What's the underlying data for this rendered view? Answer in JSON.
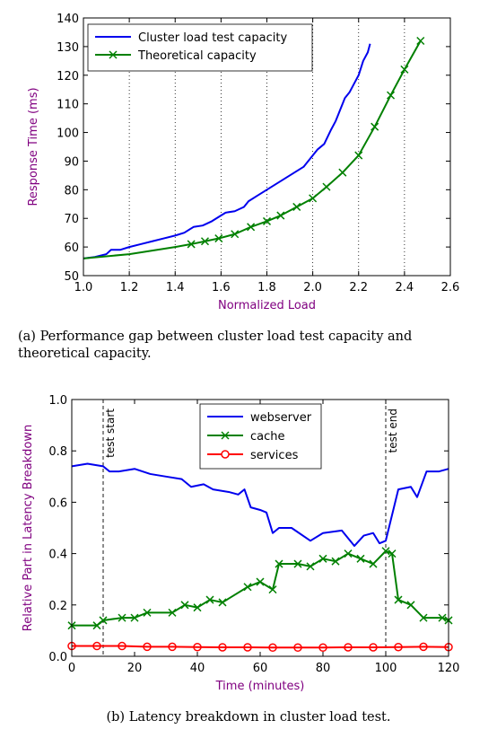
{
  "chart_data": [
    {
      "type": "line",
      "xlabel": "Normalized Load",
      "ylabel": "Response Time (ms)",
      "xlim": [
        1.0,
        2.6
      ],
      "ylim": [
        50,
        140
      ],
      "xticks": [
        "1.0",
        "1.2",
        "1.4",
        "1.6",
        "1.8",
        "2.0",
        "2.2",
        "2.4",
        "2.6"
      ],
      "yticks": [
        "50",
        "60",
        "70",
        "80",
        "90",
        "100",
        "110",
        "120",
        "130",
        "140"
      ],
      "grid": "vertical dotted",
      "legend": "top-left",
      "series": [
        {
          "name": "Cluster load test capacity",
          "color": "#0000ee",
          "marker": "none",
          "points": [
            [
              1.0,
              56
            ],
            [
              1.05,
              56.5
            ],
            [
              1.1,
              57.5
            ],
            [
              1.12,
              59
            ],
            [
              1.16,
              59
            ],
            [
              1.2,
              60
            ],
            [
              1.25,
              61
            ],
            [
              1.3,
              62
            ],
            [
              1.35,
              63
            ],
            [
              1.4,
              64
            ],
            [
              1.44,
              65
            ],
            [
              1.48,
              67
            ],
            [
              1.52,
              67.5
            ],
            [
              1.56,
              69
            ],
            [
              1.6,
              71
            ],
            [
              1.62,
              72
            ],
            [
              1.66,
              72.5
            ],
            [
              1.7,
              74
            ],
            [
              1.72,
              76
            ],
            [
              1.76,
              78
            ],
            [
              1.8,
              80
            ],
            [
              1.84,
              82
            ],
            [
              1.88,
              84
            ],
            [
              1.92,
              86
            ],
            [
              1.96,
              88
            ],
            [
              2.0,
              92
            ],
            [
              2.02,
              94
            ],
            [
              2.05,
              96
            ],
            [
              2.08,
              101
            ],
            [
              2.1,
              104
            ],
            [
              2.12,
              108
            ],
            [
              2.14,
              112
            ],
            [
              2.16,
              114
            ],
            [
              2.18,
              117
            ],
            [
              2.2,
              120
            ],
            [
              2.22,
              125
            ],
            [
              2.24,
              128
            ],
            [
              2.25,
              131
            ]
          ]
        },
        {
          "name": "Theoretical capacity",
          "color": "#008000",
          "marker": "x",
          "points": [
            [
              1.0,
              56
            ],
            [
              1.2,
              57.5
            ],
            [
              1.4,
              60
            ],
            [
              1.47,
              61
            ],
            [
              1.53,
              62
            ],
            [
              1.59,
              63
            ],
            [
              1.66,
              64.5
            ],
            [
              1.73,
              67
            ],
            [
              1.8,
              69
            ],
            [
              1.86,
              71
            ],
            [
              1.93,
              74
            ],
            [
              2.0,
              77
            ],
            [
              2.06,
              81
            ],
            [
              2.13,
              86
            ],
            [
              2.2,
              92
            ],
            [
              2.27,
              102
            ],
            [
              2.34,
              113
            ],
            [
              2.4,
              122
            ],
            [
              2.47,
              132
            ]
          ]
        }
      ]
    },
    {
      "type": "line",
      "xlabel": "Time (minutes)",
      "ylabel": "Relative Part in Latency Breakdown",
      "xlim": [
        0,
        120
      ],
      "ylim": [
        0,
        1.0
      ],
      "xticks": [
        "0",
        "20",
        "40",
        "60",
        "80",
        "100",
        "120"
      ],
      "yticks": [
        "0.0",
        "0.2",
        "0.4",
        "0.6",
        "0.8",
        "1.0"
      ],
      "grid": "off",
      "legend": "top-center",
      "annotations": [
        {
          "label": "test start",
          "x": 10
        },
        {
          "label": "test end",
          "x": 100
        }
      ],
      "series": [
        {
          "name": "webserver",
          "color": "#0000ee",
          "marker": "none",
          "points": [
            [
              0,
              0.74
            ],
            [
              5,
              0.75
            ],
            [
              10,
              0.74
            ],
            [
              12,
              0.72
            ],
            [
              15,
              0.72
            ],
            [
              20,
              0.73
            ],
            [
              25,
              0.71
            ],
            [
              30,
              0.7
            ],
            [
              35,
              0.69
            ],
            [
              38,
              0.66
            ],
            [
              42,
              0.67
            ],
            [
              45,
              0.65
            ],
            [
              50,
              0.64
            ],
            [
              53,
              0.63
            ],
            [
              55,
              0.65
            ],
            [
              57,
              0.58
            ],
            [
              60,
              0.57
            ],
            [
              62,
              0.56
            ],
            [
              64,
              0.48
            ],
            [
              66,
              0.5
            ],
            [
              70,
              0.5
            ],
            [
              76,
              0.45
            ],
            [
              80,
              0.48
            ],
            [
              86,
              0.49
            ],
            [
              90,
              0.43
            ],
            [
              93,
              0.47
            ],
            [
              96,
              0.48
            ],
            [
              98,
              0.44
            ],
            [
              100,
              0.45
            ],
            [
              104,
              0.65
            ],
            [
              108,
              0.66
            ],
            [
              110,
              0.62
            ],
            [
              113,
              0.72
            ],
            [
              117,
              0.72
            ],
            [
              120,
              0.73
            ]
          ]
        },
        {
          "name": "cache",
          "color": "#008000",
          "marker": "x",
          "points": [
            [
              0,
              0.12
            ],
            [
              8,
              0.12
            ],
            [
              10,
              0.14
            ],
            [
              16,
              0.15
            ],
            [
              20,
              0.15
            ],
            [
              24,
              0.17
            ],
            [
              32,
              0.17
            ],
            [
              36,
              0.2
            ],
            [
              40,
              0.19
            ],
            [
              44,
              0.22
            ],
            [
              48,
              0.21
            ],
            [
              56,
              0.27
            ],
            [
              60,
              0.29
            ],
            [
              64,
              0.26
            ],
            [
              66,
              0.36
            ],
            [
              72,
              0.36
            ],
            [
              76,
              0.35
            ],
            [
              80,
              0.38
            ],
            [
              84,
              0.37
            ],
            [
              88,
              0.4
            ],
            [
              92,
              0.38
            ],
            [
              96,
              0.36
            ],
            [
              100,
              0.41
            ],
            [
              102,
              0.4
            ],
            [
              104,
              0.22
            ],
            [
              108,
              0.2
            ],
            [
              112,
              0.15
            ],
            [
              118,
              0.15
            ],
            [
              120,
              0.14
            ]
          ]
        },
        {
          "name": "services",
          "color": "#ff0000",
          "marker": "o",
          "points": [
            [
              0,
              0.04
            ],
            [
              8,
              0.04
            ],
            [
              16,
              0.04
            ],
            [
              24,
              0.037
            ],
            [
              32,
              0.037
            ],
            [
              40,
              0.036
            ],
            [
              48,
              0.035
            ],
            [
              56,
              0.035
            ],
            [
              64,
              0.034
            ],
            [
              72,
              0.034
            ],
            [
              80,
              0.034
            ],
            [
              88,
              0.035
            ],
            [
              96,
              0.035
            ],
            [
              104,
              0.036
            ],
            [
              112,
              0.037
            ],
            [
              120,
              0.036
            ]
          ]
        }
      ]
    }
  ],
  "captions": {
    "a": "(a)  Performance gap between cluster load test capacity and theoretical capacity.",
    "b": "(b)  Latency breakdown in cluster load test."
  }
}
